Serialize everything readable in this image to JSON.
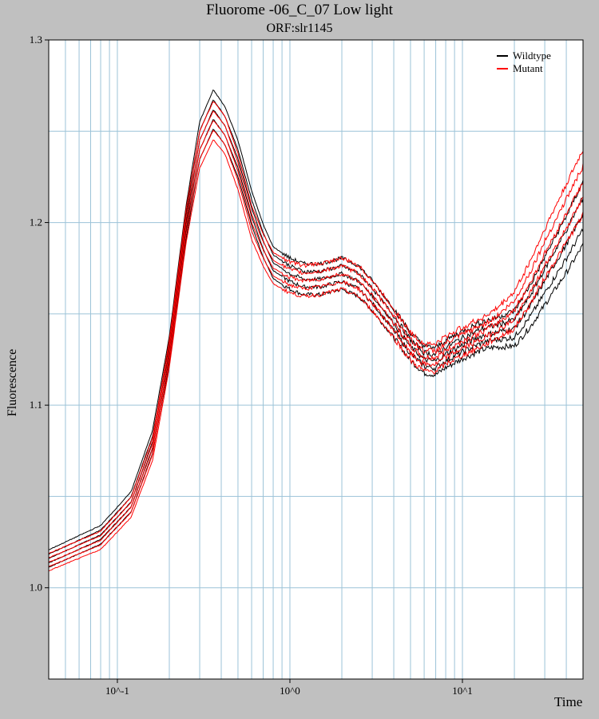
{
  "chart_data": {
    "type": "line",
    "title": "Fluorome -06_C_07 Low light",
    "subtitle": "ORF:slr1145",
    "xlabel": "Time",
    "ylabel": "Fluorescence",
    "x_scale": "log",
    "xlim": [
      0.04,
      50
    ],
    "ylim": [
      0.95,
      1.3
    ],
    "x_ticks": [
      {
        "value": 0.1,
        "label": "10^-1"
      },
      {
        "value": 1,
        "label": "10^0"
      },
      {
        "value": 10,
        "label": "10^1"
      }
    ],
    "y_ticks": [
      {
        "value": 1.0,
        "label": "1.0"
      },
      {
        "value": 1.1,
        "label": "1.1"
      },
      {
        "value": 1.2,
        "label": "1.2"
      },
      {
        "value": 1.3,
        "label": "1.3"
      }
    ],
    "grid": true,
    "legend_position": "top-right",
    "series": [
      {
        "name": "Wildtype",
        "color": "#000000",
        "replicates": 5,
        "x": [
          0.04,
          0.08,
          0.12,
          0.16,
          0.2,
          0.25,
          0.3,
          0.36,
          0.42,
          0.5,
          0.6,
          0.7,
          0.8,
          1.0,
          1.2,
          1.5,
          2.0,
          2.5,
          3.0,
          4.0,
          5.0,
          6.0,
          7.0,
          8.0,
          10.0,
          13.0,
          16.0,
          20.0,
          25.0,
          30.0,
          40.0,
          50.0
        ],
        "y": [
          1.016,
          1.029,
          1.047,
          1.08,
          1.13,
          1.2,
          1.245,
          1.262,
          1.253,
          1.235,
          1.208,
          1.19,
          1.178,
          1.172,
          1.169,
          1.169,
          1.172,
          1.168,
          1.16,
          1.145,
          1.132,
          1.125,
          1.124,
          1.128,
          1.133,
          1.138,
          1.14,
          1.142,
          1.155,
          1.168,
          1.188,
          1.205
        ]
      },
      {
        "name": "Mutant",
        "color": "#ff0000",
        "replicates": 5,
        "x": [
          0.04,
          0.08,
          0.12,
          0.16,
          0.2,
          0.25,
          0.3,
          0.36,
          0.42,
          0.5,
          0.6,
          0.7,
          0.8,
          1.0,
          1.2,
          1.5,
          2.0,
          2.5,
          3.0,
          4.0,
          5.0,
          6.0,
          7.0,
          8.0,
          10.0,
          13.0,
          16.0,
          20.0,
          25.0,
          30.0,
          40.0,
          50.0
        ],
        "y": [
          1.014,
          1.026,
          1.044,
          1.076,
          1.128,
          1.198,
          1.24,
          1.256,
          1.248,
          1.228,
          1.2,
          1.185,
          1.175,
          1.17,
          1.168,
          1.169,
          1.172,
          1.168,
          1.16,
          1.145,
          1.132,
          1.126,
          1.126,
          1.13,
          1.135,
          1.14,
          1.145,
          1.152,
          1.168,
          1.183,
          1.205,
          1.222
        ]
      }
    ]
  }
}
